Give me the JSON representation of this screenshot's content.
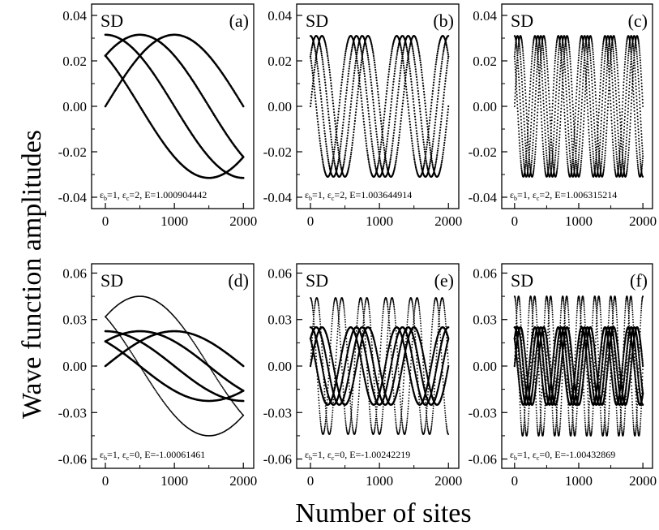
{
  "figure": {
    "ylabel": "Wave function amplitudes",
    "xlabel": "Number of sites"
  },
  "chart_data": [
    {
      "panel": "(a)",
      "tag": "SD",
      "type": "scatter",
      "annotation": {
        "eb": "1",
        "ec": "2",
        "energy": "1.000904442"
      },
      "xlim": [
        -200,
        2150
      ],
      "ylim": [
        -0.045,
        0.045
      ],
      "xticks": [
        0,
        1000,
        2000
      ],
      "xtick_labels": [
        "0",
        "1000",
        "2000"
      ],
      "yticks": [
        -0.04,
        -0.02,
        0.0,
        0.02,
        0.04
      ],
      "ytick_labels": [
        "-0.04",
        "-0.02",
        "0.00",
        "0.02",
        "0.04"
      ],
      "series": [
        {
          "amplitude": 0.0315,
          "half_periods": 1,
          "offset": 0,
          "dot_radius": 1.3
        },
        {
          "amplitude": 0.0315,
          "half_periods": 1,
          "offset": 1,
          "dot_radius": 1.3
        },
        {
          "amplitude": 0.0315,
          "half_periods": 1,
          "offset": 2,
          "dot_radius": 1.3
        },
        {
          "amplitude": 0.0315,
          "half_periods": 1,
          "offset": 3,
          "dot_radius": 1.3
        }
      ]
    },
    {
      "panel": "(b)",
      "tag": "SD",
      "type": "scatter",
      "annotation": {
        "eb": "1",
        "ec": "2",
        "energy": "1.003644914"
      },
      "xlim": [
        -200,
        2150
      ],
      "ylim": [
        -0.045,
        0.045
      ],
      "xticks": [
        0,
        1000,
        2000
      ],
      "xtick_labels": [
        "0",
        "1000",
        "2000"
      ],
      "yticks": [
        -0.04,
        -0.02,
        0.0,
        0.02,
        0.04
      ],
      "ytick_labels": [
        "-0.04",
        "-0.02",
        "0.00",
        "0.02",
        "0.04"
      ],
      "series": [
        {
          "amplitude": 0.031,
          "half_periods": 6,
          "offset": 0,
          "dot_radius": 1.1
        },
        {
          "amplitude": 0.031,
          "half_periods": 6,
          "offset": 1,
          "dot_radius": 1.1
        },
        {
          "amplitude": 0.031,
          "half_periods": 6,
          "offset": 2,
          "dot_radius": 1.1
        },
        {
          "amplitude": 0.031,
          "half_periods": 6,
          "offset": 3,
          "dot_radius": 1.1
        }
      ]
    },
    {
      "panel": "(c)",
      "tag": "SD",
      "type": "scatter",
      "annotation": {
        "eb": "1",
        "ec": "2",
        "energy": "1.006315214"
      },
      "xlim": [
        -200,
        2150
      ],
      "ylim": [
        -0.045,
        0.045
      ],
      "xticks": [
        0,
        1000,
        2000
      ],
      "xtick_labels": [
        "0",
        "1000",
        "2000"
      ],
      "yticks": [
        -0.04,
        -0.02,
        0.0,
        0.02,
        0.04
      ],
      "ytick_labels": [
        "-0.04",
        "-0.02",
        "0.00",
        "0.02",
        "0.04"
      ],
      "series": [
        {
          "amplitude": 0.031,
          "half_periods": 11,
          "offset": 0,
          "dot_radius": 1.0
        },
        {
          "amplitude": 0.031,
          "half_periods": 11,
          "offset": 1,
          "dot_radius": 1.0
        },
        {
          "amplitude": 0.031,
          "half_periods": 11,
          "offset": 2,
          "dot_radius": 1.0
        },
        {
          "amplitude": 0.031,
          "half_periods": 11,
          "offset": 3,
          "dot_radius": 1.0
        }
      ]
    },
    {
      "panel": "(d)",
      "tag": "SD",
      "type": "scatter",
      "annotation": {
        "eb": "1",
        "ec": "0",
        "energy": "-1.00061461"
      },
      "xlim": [
        -200,
        2150
      ],
      "ylim": [
        -0.066,
        0.066
      ],
      "xticks": [
        0,
        1000,
        2000
      ],
      "xtick_labels": [
        "0",
        "1000",
        "2000"
      ],
      "yticks": [
        -0.06,
        -0.03,
        0.0,
        0.03,
        0.06
      ],
      "ytick_labels": [
        "-0.06",
        "-0.03",
        "0.00",
        "0.03",
        "0.06"
      ],
      "series": [
        {
          "amplitude": 0.0225,
          "half_periods": 1,
          "offset": 0,
          "dot_radius": 1.3
        },
        {
          "amplitude": 0.0225,
          "half_periods": 1,
          "offset": 1,
          "dot_radius": 1.3
        },
        {
          "amplitude": 0.0225,
          "half_periods": 1,
          "offset": 2,
          "dot_radius": 1.3
        },
        {
          "amplitude": 0.0225,
          "half_periods": 1,
          "offset": 3,
          "dot_radius": 1.3
        },
        {
          "amplitude": 0.045,
          "half_periods": 1,
          "offset": 1,
          "dot_radius": 0.9
        },
        {
          "amplitude": 0.045,
          "half_periods": 1,
          "offset": 3,
          "dot_radius": 0.9
        }
      ]
    },
    {
      "panel": "(e)",
      "tag": "SD",
      "type": "scatter",
      "annotation": {
        "eb": "1",
        "ec": "0",
        "energy": "-1.00242219"
      },
      "xlim": [
        -200,
        2150
      ],
      "ylim": [
        -0.066,
        0.066
      ],
      "xticks": [
        0,
        1000,
        2000
      ],
      "xtick_labels": [
        "0",
        "1000",
        "2000"
      ],
      "yticks": [
        -0.06,
        -0.03,
        0.0,
        0.03,
        0.06
      ],
      "ytick_labels": [
        "-0.06",
        "-0.03",
        "0.00",
        "0.03",
        "0.06"
      ],
      "series": [
        {
          "amplitude": 0.025,
          "half_periods": 6,
          "offset": 0,
          "dot_radius": 1.2
        },
        {
          "amplitude": 0.025,
          "half_periods": 6,
          "offset": 1,
          "dot_radius": 1.2
        },
        {
          "amplitude": 0.025,
          "half_periods": 6,
          "offset": 2,
          "dot_radius": 1.2
        },
        {
          "amplitude": 0.025,
          "half_periods": 6,
          "offset": 3,
          "dot_radius": 1.2
        },
        {
          "amplitude": 0.044,
          "half_periods": 11,
          "offset": 0,
          "dot_radius": 0.9
        },
        {
          "amplitude": 0.044,
          "half_periods": 11,
          "offset": 2,
          "dot_radius": 0.9
        }
      ]
    },
    {
      "panel": "(f)",
      "tag": "SD",
      "type": "scatter",
      "annotation": {
        "eb": "1",
        "ec": "0",
        "energy": "-1.00432869"
      },
      "xlim": [
        -200,
        2150
      ],
      "ylim": [
        -0.066,
        0.066
      ],
      "xticks": [
        0,
        1000,
        2000
      ],
      "xtick_labels": [
        "0",
        "1000",
        "2000"
      ],
      "yticks": [
        -0.06,
        -0.03,
        0.0,
        0.03,
        0.06
      ],
      "ytick_labels": [
        "-0.06",
        "-0.03",
        "0.00",
        "0.03",
        "0.06"
      ],
      "series": [
        {
          "amplitude": 0.025,
          "half_periods": 11,
          "offset": 0,
          "dot_radius": 1.2
        },
        {
          "amplitude": 0.025,
          "half_periods": 11,
          "offset": 1,
          "dot_radius": 1.2
        },
        {
          "amplitude": 0.025,
          "half_periods": 11,
          "offset": 2,
          "dot_radius": 1.2
        },
        {
          "amplitude": 0.025,
          "half_periods": 11,
          "offset": 3,
          "dot_radius": 1.2
        },
        {
          "amplitude": 0.045,
          "half_periods": 16,
          "offset": 0,
          "dot_radius": 0.9
        },
        {
          "amplitude": 0.045,
          "half_periods": 16,
          "offset": 2,
          "dot_radius": 0.9
        }
      ]
    }
  ]
}
